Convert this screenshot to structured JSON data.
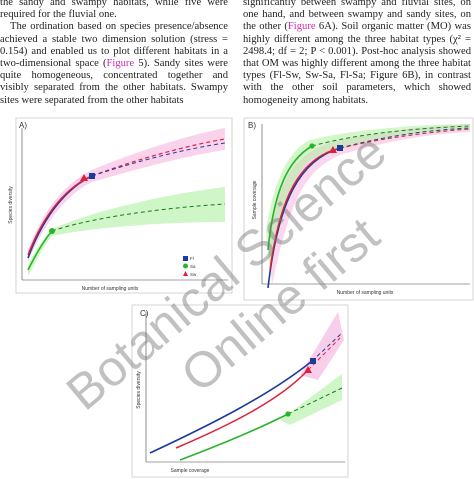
{
  "left_column": {
    "p0": "the sandy and swampy habitats, while five were required for the fluvial one.",
    "p1": [
      "The ordination based on species presence/absence achieved a stable two dimension solution (stress = 0.154) and enabled us to plot different habitats in a two-dimensional space (",
      "Figure",
      " 5). Sandy sites were quite homogeneous, concentrated together and visibly separated from the other habitats. Swampy sites were separated from the other habitats"
    ]
  },
  "right_column": {
    "p0": [
      "significantly between swampy and fluvial sites, on one hand, and between swampy and sandy sites, on the other (",
      "Figure",
      " 6A). Soil organic matter (MO) was highly different among the three habitat types (χ² = 2498.4; df = 2; P < 0.001). Post-hoc analysis showed that OM was highly different among the three habitat types (Fl-Sw, Sw-Sa, Fl-Sa; Figure 6B), in contrast with the other soil parameters, which showed homogeneity among habitats."
    ]
  },
  "figure": {
    "panel_a": {
      "label": "A)",
      "y_label": "Species diversity",
      "x_label": "Number of sampling units",
      "legend": [
        "Fl",
        "Sa",
        "Sw"
      ]
    },
    "panel_b": {
      "label": "B)",
      "y_label": "Sample coverage",
      "x_label": "Number of sampling units"
    },
    "panel_c": {
      "label": "C)",
      "y_label": "Species diversity",
      "x_label": "Sample coverage"
    }
  },
  "watermark": [
    "Botanical Science",
    "Online first"
  ]
}
